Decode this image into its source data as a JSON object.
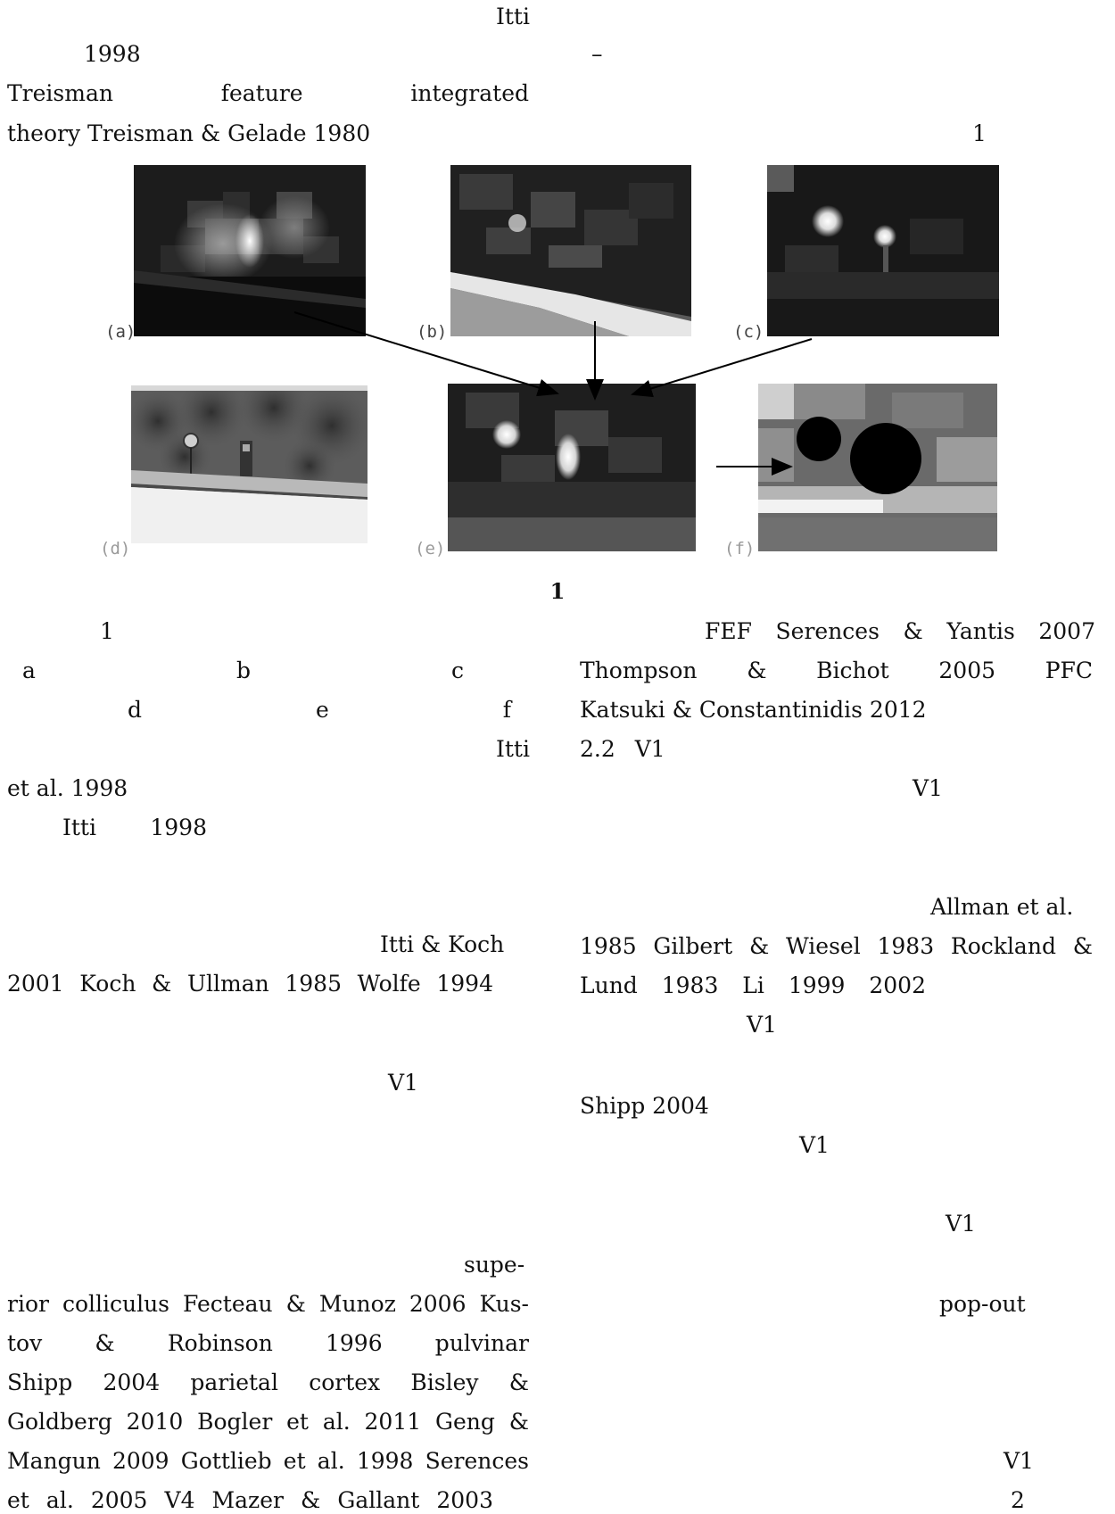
{
  "text_lines": {
    "l01": "Itti",
    "l02": "1998",
    "l03": "Treisman feature integrated",
    "l04": "theory Treisman & Gelade 1980",
    "l05": "1",
    "l06": "1",
    "l07": "a b c",
    "l08": "d e f",
    "l09": "Itti",
    "l10": "et al. 1998",
    "l11": "Itti 1998",
    "l12": "Itti & Koch",
    "l13": "2001 Koch & Ullman 1985 Wolfe 1994",
    "l14": "V1",
    "l15": "supe-",
    "l16": "rior colliculus Fecteau & Munoz 2006 Kus-",
    "l17": "tov & Robinson 1996 pulvinar",
    "l18": "Shipp 2004 parietal cortex Bisley &",
    "l19": "Goldberg 2010 Bogler et al. 2011 Geng &",
    "l20": "Mangun 2009 Gottlieb et al. 1998 Serences",
    "l21": "et al. 2005 V4 Mazer & Gallant 2003",
    "r01": "–",
    "r02": "FEF Serences & Yantis 2007",
    "r03": "Thompson & Bichot 2005 PFC",
    "r04": "Katsuki & Constantinidis 2012",
    "r05": "2.2 V1",
    "r06": "V1",
    "r07": "Allman et al.",
    "r08": "1985 Gilbert & Wiesel 1983 Rockland &",
    "r09": "Lund 1983 Li 1999 2002",
    "r10": "V1",
    "r11": "Shipp 2004",
    "r12": "V1",
    "r13": "V1",
    "r14": "pop-out",
    "r15": "V1",
    "r16": "2"
  },
  "figure": {
    "caption": "1",
    "panels": {
      "a": "(a)",
      "b": "(b)",
      "c": "(c)",
      "d": "(d)",
      "e": "(e)",
      "f": "(f)"
    }
  },
  "colors": {
    "text": "#111111",
    "label": "#444444",
    "background": "#ffffff"
  }
}
